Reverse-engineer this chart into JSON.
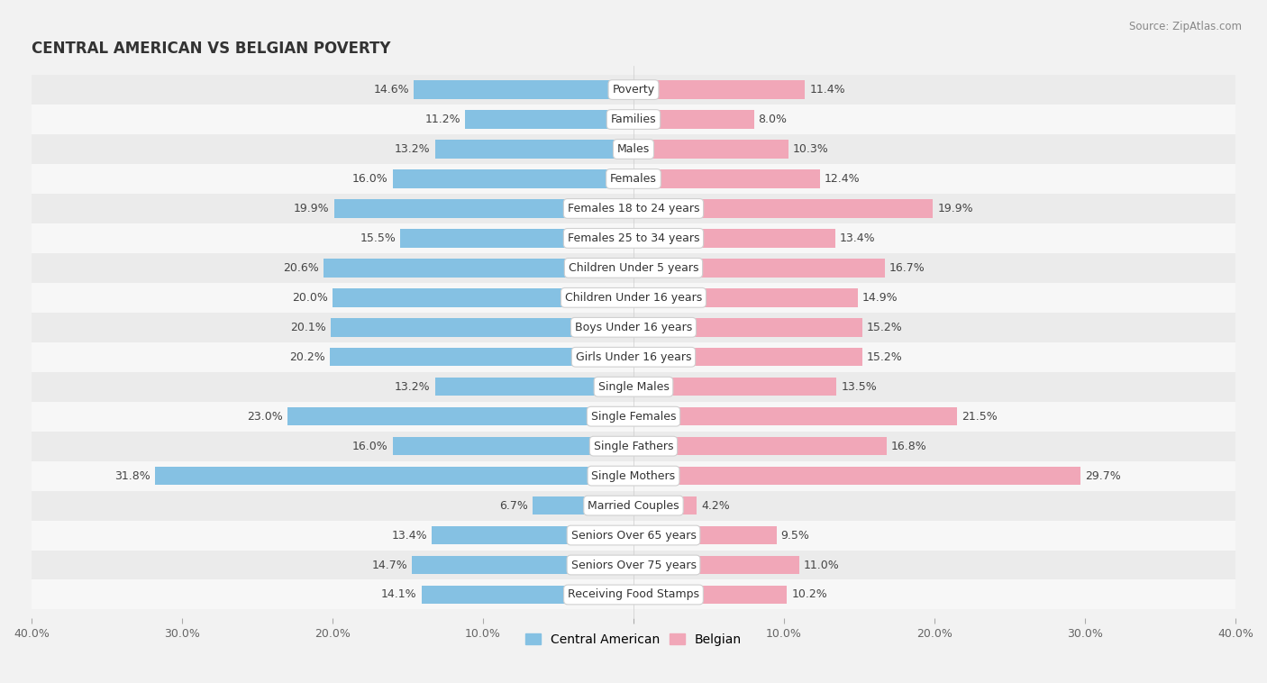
{
  "title": "CENTRAL AMERICAN VS BELGIAN POVERTY",
  "source": "Source: ZipAtlas.com",
  "categories": [
    "Poverty",
    "Families",
    "Males",
    "Females",
    "Females 18 to 24 years",
    "Females 25 to 34 years",
    "Children Under 5 years",
    "Children Under 16 years",
    "Boys Under 16 years",
    "Girls Under 16 years",
    "Single Males",
    "Single Females",
    "Single Fathers",
    "Single Mothers",
    "Married Couples",
    "Seniors Over 65 years",
    "Seniors Over 75 years",
    "Receiving Food Stamps"
  ],
  "central_american": [
    14.6,
    11.2,
    13.2,
    16.0,
    19.9,
    15.5,
    20.6,
    20.0,
    20.1,
    20.2,
    13.2,
    23.0,
    16.0,
    31.8,
    6.7,
    13.4,
    14.7,
    14.1
  ],
  "belgian": [
    11.4,
    8.0,
    10.3,
    12.4,
    19.9,
    13.4,
    16.7,
    14.9,
    15.2,
    15.2,
    13.5,
    21.5,
    16.8,
    29.7,
    4.2,
    9.5,
    11.0,
    10.2
  ],
  "central_american_color": "#85C1E3",
  "belgian_color": "#F1A7B8",
  "row_color_odd": "#ebebeb",
  "row_color_even": "#f7f7f7",
  "background_color": "#f2f2f2",
  "axis_max": 40.0,
  "bar_height": 0.62,
  "label_fontsize": 9.0,
  "value_fontsize": 9.0,
  "title_fontsize": 12,
  "source_fontsize": 8.5,
  "legend_fontsize": 10
}
